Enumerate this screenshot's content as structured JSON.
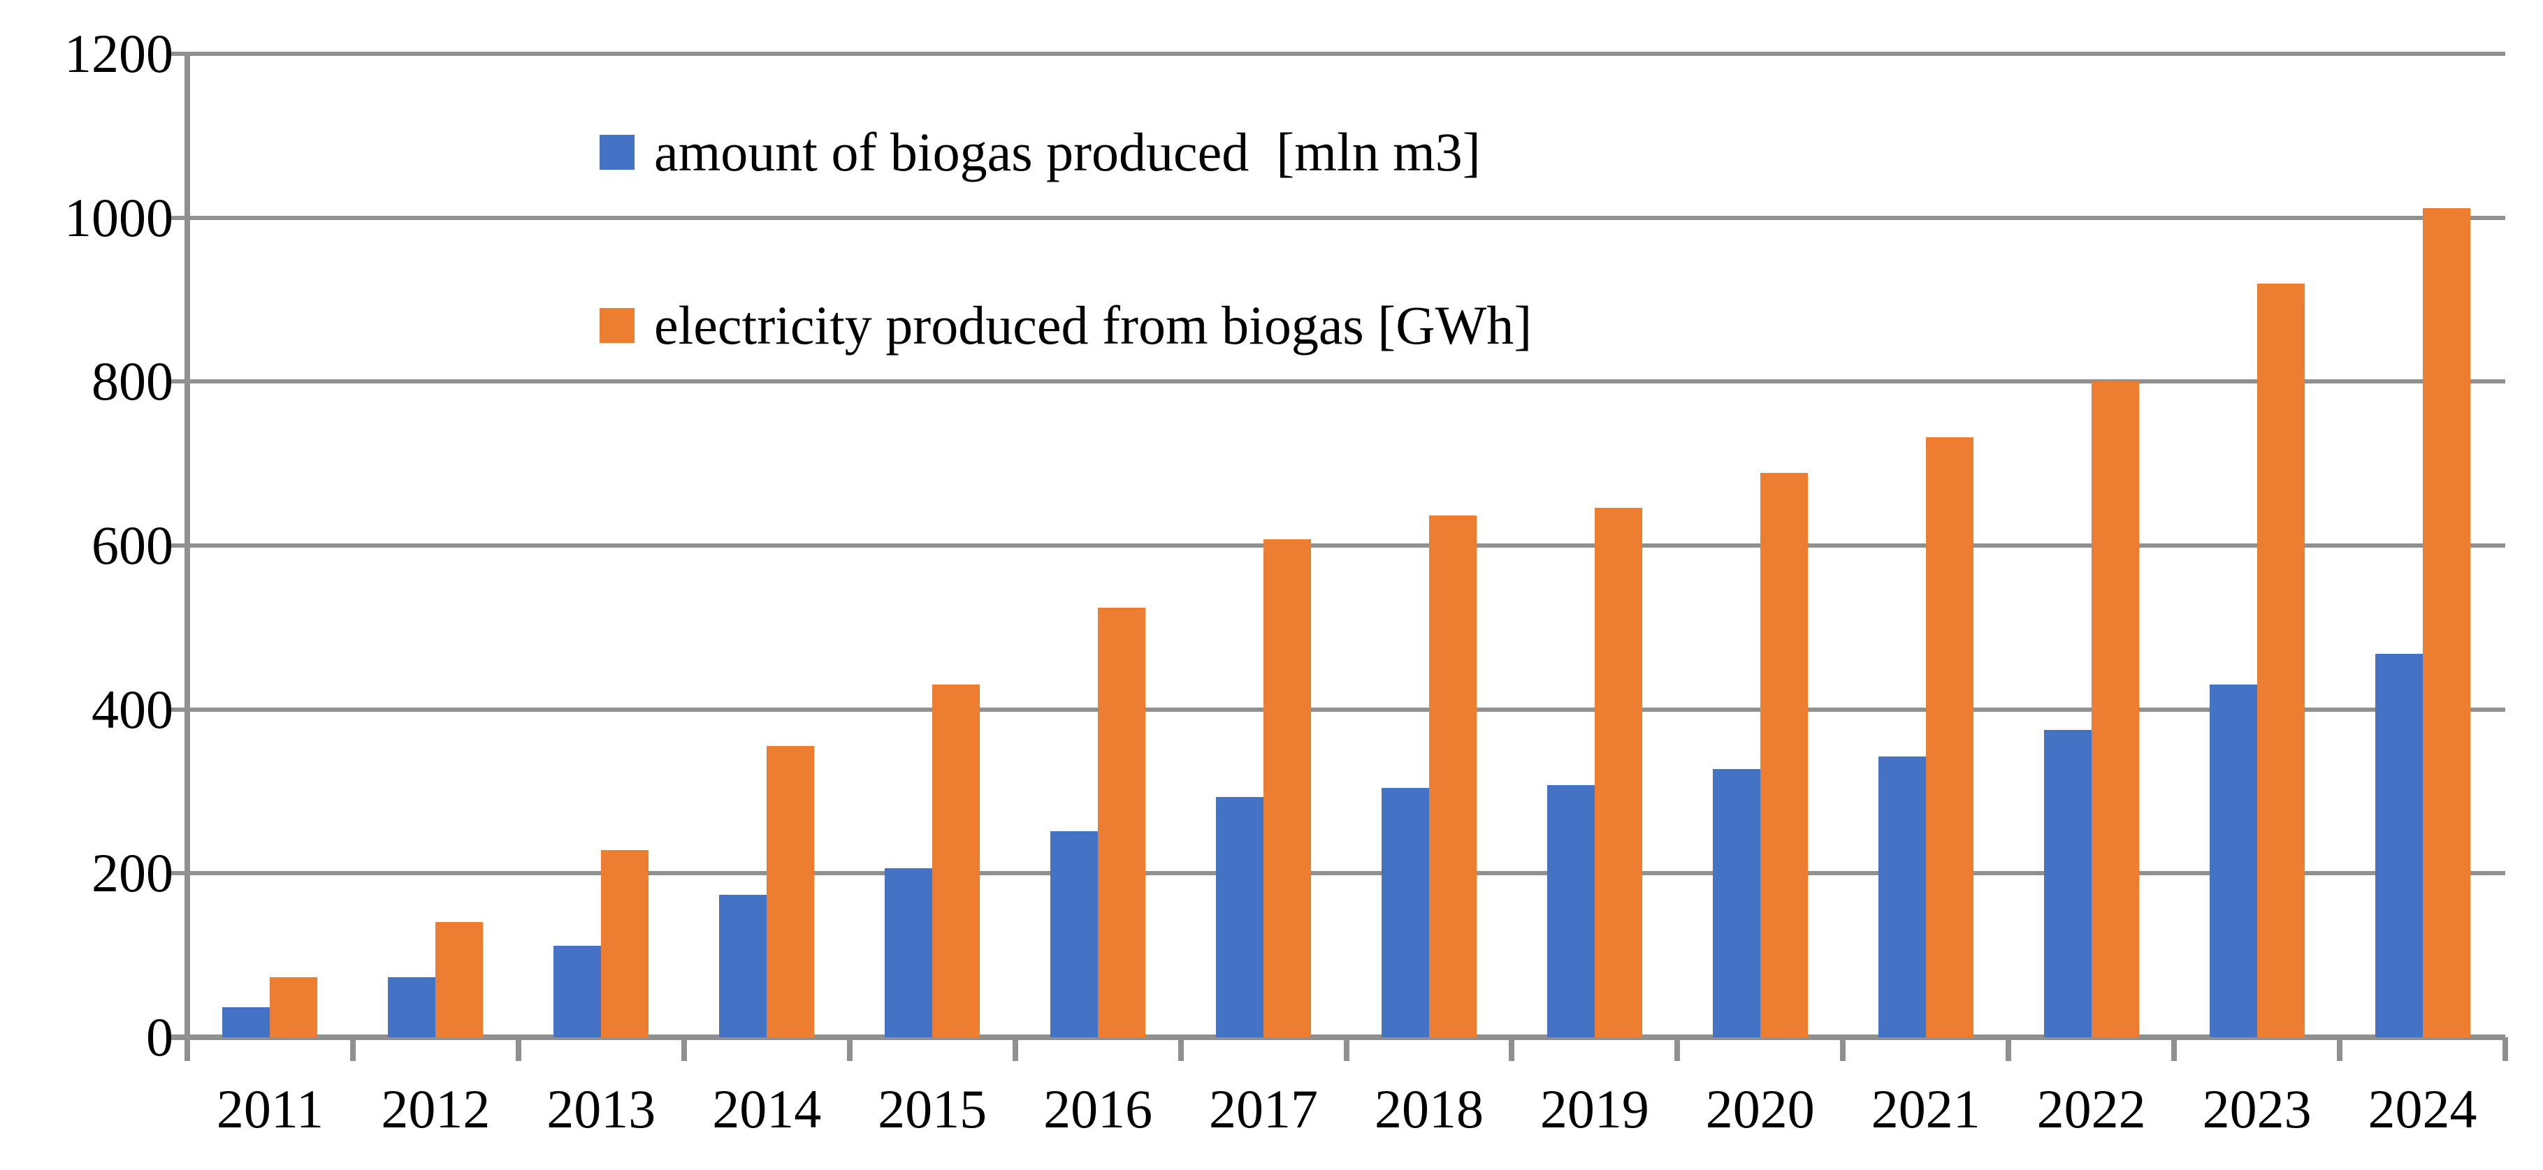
{
  "chart_data": {
    "type": "bar",
    "title": "",
    "xlabel": "",
    "ylabel": "",
    "categories": [
      "2011",
      "2012",
      "2013",
      "2014",
      "2015",
      "2016",
      "2017",
      "2018",
      "2019",
      "2020",
      "2021",
      "2022",
      "2023",
      "2024"
    ],
    "series": [
      {
        "name": "amount of biogas produced  [mln m3]",
        "color": "#4472C4",
        "values": [
          37,
          73,
          112,
          174,
          206,
          251,
          293,
          304,
          308,
          327,
          343,
          375,
          430,
          468
        ]
      },
      {
        "name": "electricity produced from biogas [GWh]",
        "color": "#ED7D31",
        "values": [
          73,
          141,
          228,
          355,
          430,
          524,
          608,
          637,
          646,
          689,
          732,
          800,
          920,
          1012
        ]
      }
    ],
    "ylim": [
      0,
      1200
    ],
    "yticks": [
      0,
      200,
      400,
      600,
      800,
      1000,
      1200
    ],
    "grid": true,
    "gridline_color": "#909090",
    "legend_position": "inside-top-left"
  },
  "legend": {
    "item1": "amount of biogas produced  [mln m3]",
    "item2": "electricity produced from biogas [GWh]"
  }
}
